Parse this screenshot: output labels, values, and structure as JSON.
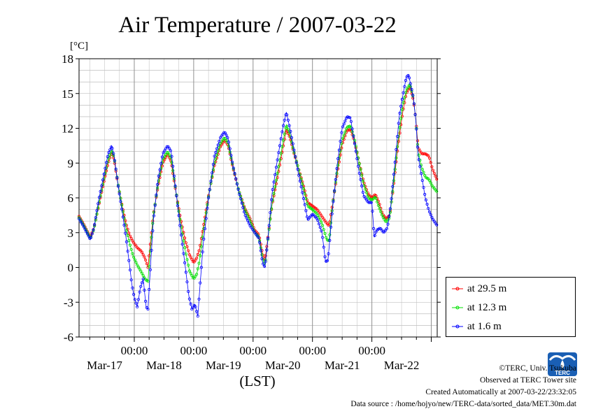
{
  "chart_data": {
    "type": "line",
    "title": "Air Temperature / 2007-03-22",
    "ylabel": "[°C]",
    "xlabel": "(LST)",
    "ylim": [
      -6,
      18
    ],
    "xlim_days": [
      -0.93,
      5.1
    ],
    "yticks": [
      "-6",
      "-3",
      "0",
      "3",
      "6",
      "9",
      "12",
      "15",
      "18"
    ],
    "yvalues": [
      -6,
      -3,
      0,
      3,
      6,
      9,
      12,
      15,
      18
    ],
    "xticks_time": [
      "00:00",
      "00:00",
      "00:00",
      "00:00",
      "00:00"
    ],
    "xticks_pos_days": [
      0,
      1,
      2,
      3,
      4
    ],
    "date_labels": [
      "Mar-17",
      "Mar-18",
      "Mar-19",
      "Mar-20",
      "Mar-21",
      "Mar-22"
    ],
    "date_label_pos_days": [
      -0.5,
      0.5,
      1.5,
      2.5,
      3.5,
      4.5
    ],
    "grid": true,
    "legend_position": "outside-bottom-right",
    "series": [
      {
        "name": "at 29.5 m",
        "color": "#ff0000",
        "points": [
          [
            -0.93,
            4.4
          ],
          [
            -0.86,
            3.8
          ],
          [
            -0.8,
            3.2
          ],
          [
            -0.74,
            2.6
          ],
          [
            -0.68,
            3.4
          ],
          [
            -0.6,
            5.3
          ],
          [
            -0.52,
            7.2
          ],
          [
            -0.44,
            9.0
          ],
          [
            -0.38,
            9.9
          ],
          [
            -0.34,
            9.3
          ],
          [
            -0.27,
            7.0
          ],
          [
            -0.2,
            5.2
          ],
          [
            -0.14,
            3.8
          ],
          [
            -0.08,
            2.8
          ],
          [
            -0.02,
            2.2
          ],
          [
            0.05,
            1.7
          ],
          [
            0.12,
            1.4
          ],
          [
            0.18,
            0.8
          ],
          [
            0.23,
            0.0
          ],
          [
            0.27,
            2.0
          ],
          [
            0.32,
            4.5
          ],
          [
            0.4,
            7.0
          ],
          [
            0.48,
            9.0
          ],
          [
            0.56,
            9.8
          ],
          [
            0.62,
            9.1
          ],
          [
            0.7,
            6.5
          ],
          [
            0.78,
            4.2
          ],
          [
            0.86,
            2.3
          ],
          [
            0.93,
            1.1
          ],
          [
            1.0,
            0.4
          ],
          [
            1.05,
            0.8
          ],
          [
            1.1,
            1.6
          ],
          [
            1.16,
            3.4
          ],
          [
            1.25,
            6.2
          ],
          [
            1.35,
            8.8
          ],
          [
            1.45,
            10.4
          ],
          [
            1.52,
            11.0
          ],
          [
            1.58,
            10.5
          ],
          [
            1.66,
            8.6
          ],
          [
            1.76,
            6.6
          ],
          [
            1.86,
            5.1
          ],
          [
            1.95,
            4.2
          ],
          [
            2.03,
            3.2
          ],
          [
            2.1,
            2.8
          ],
          [
            2.16,
            1.2
          ],
          [
            2.2,
            0.6
          ],
          [
            2.25,
            2.6
          ],
          [
            2.32,
            5.4
          ],
          [
            2.42,
            8.0
          ],
          [
            2.5,
            10.2
          ],
          [
            2.56,
            11.9
          ],
          [
            2.62,
            11.2
          ],
          [
            2.68,
            10.0
          ],
          [
            2.76,
            8.6
          ],
          [
            2.84,
            7.2
          ],
          [
            2.92,
            5.6
          ],
          [
            3.0,
            5.3
          ],
          [
            3.08,
            5.0
          ],
          [
            3.16,
            4.4
          ],
          [
            3.24,
            3.8
          ],
          [
            3.28,
            3.6
          ],
          [
            3.34,
            5.5
          ],
          [
            3.42,
            8.2
          ],
          [
            3.5,
            10.6
          ],
          [
            3.58,
            11.8
          ],
          [
            3.64,
            11.9
          ],
          [
            3.7,
            11.0
          ],
          [
            3.78,
            9.2
          ],
          [
            3.86,
            7.4
          ],
          [
            3.94,
            6.3
          ],
          [
            4.0,
            6.0
          ],
          [
            4.06,
            6.3
          ],
          [
            4.12,
            5.6
          ],
          [
            4.18,
            4.6
          ],
          [
            4.24,
            4.2
          ],
          [
            4.3,
            4.5
          ],
          [
            4.36,
            6.8
          ],
          [
            4.44,
            10.5
          ],
          [
            4.52,
            13.4
          ],
          [
            4.58,
            15.0
          ],
          [
            4.64,
            15.6
          ],
          [
            4.7,
            14.4
          ],
          [
            4.74,
            12.8
          ],
          [
            4.78,
            10.3
          ],
          [
            4.84,
            9.8
          ],
          [
            4.9,
            9.8
          ],
          [
            4.96,
            9.6
          ],
          [
            5.02,
            8.5
          ],
          [
            5.1,
            7.5
          ]
        ]
      },
      {
        "name": "at 12.3 m",
        "color": "#00e000",
        "points": [
          [
            -0.93,
            4.3
          ],
          [
            -0.86,
            3.7
          ],
          [
            -0.8,
            3.1
          ],
          [
            -0.74,
            2.5
          ],
          [
            -0.68,
            3.3
          ],
          [
            -0.6,
            5.4
          ],
          [
            -0.52,
            7.4
          ],
          [
            -0.44,
            9.3
          ],
          [
            -0.38,
            10.1
          ],
          [
            -0.34,
            9.5
          ],
          [
            -0.27,
            7.1
          ],
          [
            -0.2,
            5.1
          ],
          [
            -0.14,
            3.4
          ],
          [
            -0.08,
            2.1
          ],
          [
            -0.02,
            1.0
          ],
          [
            0.05,
            0.2
          ],
          [
            0.12,
            -0.4
          ],
          [
            0.18,
            -1.0
          ],
          [
            0.23,
            -1.2
          ],
          [
            0.27,
            1.4
          ],
          [
            0.32,
            4.4
          ],
          [
            0.4,
            7.2
          ],
          [
            0.48,
            9.3
          ],
          [
            0.56,
            10.0
          ],
          [
            0.62,
            9.4
          ],
          [
            0.7,
            6.6
          ],
          [
            0.78,
            3.8
          ],
          [
            0.86,
            1.4
          ],
          [
            0.93,
            -0.3
          ],
          [
            1.0,
            -1.0
          ],
          [
            1.05,
            -0.6
          ],
          [
            1.1,
            0.6
          ],
          [
            1.16,
            3.0
          ],
          [
            1.25,
            6.1
          ],
          [
            1.35,
            9.0
          ],
          [
            1.45,
            10.7
          ],
          [
            1.52,
            11.2
          ],
          [
            1.58,
            10.7
          ],
          [
            1.66,
            8.7
          ],
          [
            1.76,
            6.6
          ],
          [
            1.86,
            5.0
          ],
          [
            1.95,
            4.0
          ],
          [
            2.03,
            3.0
          ],
          [
            2.1,
            2.6
          ],
          [
            2.16,
            0.8
          ],
          [
            2.2,
            0.2
          ],
          [
            2.25,
            2.4
          ],
          [
            2.32,
            5.5
          ],
          [
            2.42,
            8.4
          ],
          [
            2.5,
            10.7
          ],
          [
            2.56,
            12.3
          ],
          [
            2.62,
            11.5
          ],
          [
            2.68,
            10.1
          ],
          [
            2.76,
            8.6
          ],
          [
            2.84,
            7.0
          ],
          [
            2.92,
            5.3
          ],
          [
            3.0,
            5.0
          ],
          [
            3.08,
            4.6
          ],
          [
            3.16,
            3.8
          ],
          [
            3.24,
            2.4
          ],
          [
            3.28,
            2.3
          ],
          [
            3.34,
            5.4
          ],
          [
            3.42,
            8.5
          ],
          [
            3.5,
            11.0
          ],
          [
            3.58,
            12.1
          ],
          [
            3.64,
            12.2
          ],
          [
            3.7,
            11.2
          ],
          [
            3.78,
            9.2
          ],
          [
            3.86,
            7.2
          ],
          [
            3.94,
            6.0
          ],
          [
            4.0,
            5.8
          ],
          [
            4.06,
            6.1
          ],
          [
            4.12,
            5.2
          ],
          [
            4.18,
            4.4
          ],
          [
            4.24,
            3.9
          ],
          [
            4.3,
            4.3
          ],
          [
            4.36,
            7.0
          ],
          [
            4.44,
            10.9
          ],
          [
            4.52,
            14.0
          ],
          [
            4.58,
            15.3
          ],
          [
            4.64,
            15.8
          ],
          [
            4.7,
            14.6
          ],
          [
            4.74,
            12.7
          ],
          [
            4.78,
            9.9
          ],
          [
            4.84,
            8.6
          ],
          [
            4.9,
            7.8
          ],
          [
            4.96,
            7.6
          ],
          [
            5.02,
            7.0
          ],
          [
            5.1,
            6.5
          ]
        ]
      },
      {
        "name": "at 1.6 m",
        "color": "#0000ff",
        "points": [
          [
            -0.93,
            4.2
          ],
          [
            -0.86,
            3.6
          ],
          [
            -0.8,
            3.0
          ],
          [
            -0.74,
            2.4
          ],
          [
            -0.68,
            3.4
          ],
          [
            -0.6,
            5.8
          ],
          [
            -0.52,
            7.8
          ],
          [
            -0.44,
            9.8
          ],
          [
            -0.38,
            10.5
          ],
          [
            -0.34,
            9.6
          ],
          [
            -0.27,
            7.0
          ],
          [
            -0.2,
            4.7
          ],
          [
            -0.14,
            2.6
          ],
          [
            -0.08,
            0.2
          ],
          [
            -0.04,
            -1.5
          ],
          [
            0.0,
            -2.6
          ],
          [
            0.05,
            -3.4
          ],
          [
            0.1,
            -1.8
          ],
          [
            0.15,
            -1.0
          ],
          [
            0.2,
            -3.4
          ],
          [
            0.23,
            -3.6
          ],
          [
            0.27,
            -0.2
          ],
          [
            0.32,
            4.0
          ],
          [
            0.4,
            7.6
          ],
          [
            0.48,
            9.8
          ],
          [
            0.56,
            10.5
          ],
          [
            0.62,
            10.0
          ],
          [
            0.7,
            6.6
          ],
          [
            0.78,
            3.2
          ],
          [
            0.86,
            0.0
          ],
          [
            0.92,
            -2.5
          ],
          [
            0.97,
            -3.6
          ],
          [
            1.02,
            -3.2
          ],
          [
            1.07,
            -4.2
          ],
          [
            1.1,
            -2.0
          ],
          [
            1.16,
            2.0
          ],
          [
            1.25,
            6.0
          ],
          [
            1.35,
            9.6
          ],
          [
            1.45,
            11.2
          ],
          [
            1.52,
            11.7
          ],
          [
            1.58,
            11.1
          ],
          [
            1.66,
            8.8
          ],
          [
            1.76,
            6.5
          ],
          [
            1.86,
            4.6
          ],
          [
            1.95,
            3.6
          ],
          [
            2.03,
            3.0
          ],
          [
            2.1,
            2.5
          ],
          [
            2.16,
            0.4
          ],
          [
            2.2,
            0.0
          ],
          [
            2.25,
            2.5
          ],
          [
            2.32,
            6.4
          ],
          [
            2.42,
            9.6
          ],
          [
            2.5,
            12.0
          ],
          [
            2.56,
            13.4
          ],
          [
            2.62,
            12.0
          ],
          [
            2.68,
            10.4
          ],
          [
            2.76,
            8.2
          ],
          [
            2.84,
            6.2
          ],
          [
            2.92,
            4.1
          ],
          [
            3.0,
            4.6
          ],
          [
            3.08,
            4.2
          ],
          [
            3.16,
            3.0
          ],
          [
            3.22,
            0.5
          ],
          [
            3.26,
            0.6
          ],
          [
            3.34,
            5.2
          ],
          [
            3.42,
            9.0
          ],
          [
            3.5,
            12.0
          ],
          [
            3.58,
            13.0
          ],
          [
            3.64,
            12.9
          ],
          [
            3.7,
            11.0
          ],
          [
            3.78,
            8.4
          ],
          [
            3.86,
            6.2
          ],
          [
            3.94,
            5.6
          ],
          [
            4.0,
            5.6
          ],
          [
            4.04,
            2.6
          ],
          [
            4.08,
            3.2
          ],
          [
            4.14,
            3.4
          ],
          [
            4.2,
            3.0
          ],
          [
            4.26,
            3.4
          ],
          [
            4.32,
            5.4
          ],
          [
            4.4,
            9.6
          ],
          [
            4.46,
            13.0
          ],
          [
            4.52,
            14.8
          ],
          [
            4.58,
            16.4
          ],
          [
            4.62,
            16.6
          ],
          [
            4.66,
            15.6
          ],
          [
            4.7,
            14.6
          ],
          [
            4.74,
            12.7
          ],
          [
            4.78,
            9.6
          ],
          [
            4.84,
            7.8
          ],
          [
            4.9,
            6.0
          ],
          [
            4.96,
            4.9
          ],
          [
            5.02,
            4.2
          ],
          [
            5.1,
            3.6
          ]
        ]
      }
    ]
  },
  "footer": {
    "copyright": "©TERC, Univ. Tsukuba",
    "observed": "Observed at TERC Tower site",
    "created": "Created Automatically at 2007-03-22/23:32:05",
    "source": "Data source : /home/hojyo/new/TERC-data/sorted_data/MET.30m.dat",
    "logo_text": "TERC"
  }
}
